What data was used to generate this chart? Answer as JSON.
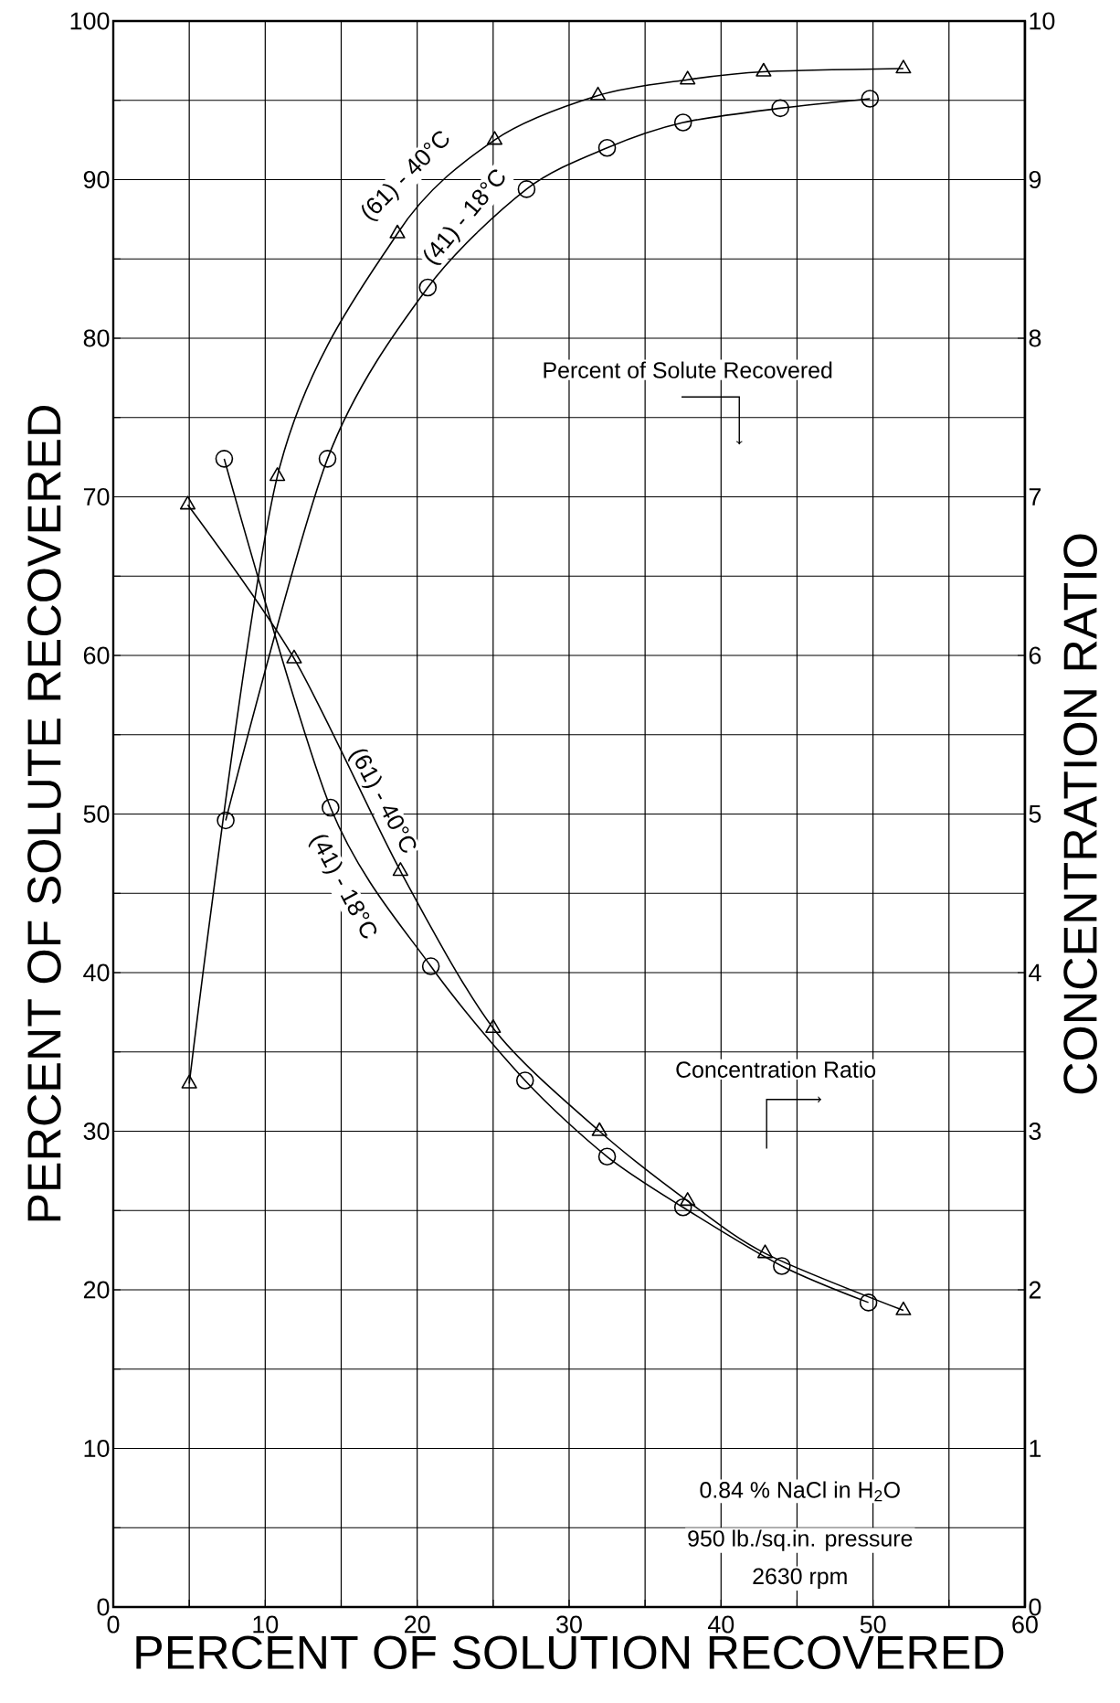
{
  "chart_data": {
    "type": "line",
    "xlabel": "PERCENT OF SOLUTION RECOVERED",
    "ylabel": "PERCENT OF SOLUTE RECOVERED",
    "y2label": "CONCENTRATION RATIO",
    "xlim": [
      0,
      60
    ],
    "xticks": [
      0,
      {
        "value": 5,
        "label": null
      },
      10,
      {
        "value": 15,
        "label": null
      },
      20,
      {
        "value": 25,
        "label": null
      },
      30,
      {
        "value": 35,
        "label": null
      },
      40,
      {
        "value": 45,
        "label": null
      },
      50,
      {
        "value": 55,
        "label": null
      },
      60
    ],
    "ylim": [
      0,
      100
    ],
    "yticks": [
      0,
      {
        "value": 5,
        "label": null
      },
      10,
      {
        "value": 15,
        "label": null
      },
      20,
      {
        "value": 25,
        "label": null
      },
      30,
      {
        "value": 35,
        "label": null
      },
      40,
      {
        "value": 45,
        "label": null
      },
      50,
      {
        "value": 55,
        "label": null
      },
      60,
      {
        "value": 65,
        "label": null
      },
      70,
      {
        "value": 75,
        "label": null
      },
      80,
      {
        "value": 85,
        "label": null
      },
      90,
      {
        "value": 95,
        "label": null
      },
      100
    ],
    "y2lim": [
      0,
      10
    ],
    "y2ticks": [
      0,
      1,
      2,
      3,
      4,
      5,
      6,
      7,
      8,
      9,
      10
    ],
    "grid": true,
    "legend": false,
    "series": [
      {
        "name": "(61) - 40°C",
        "color": "#000000",
        "marker": "triangle",
        "axis": "y",
        "x": [
          5,
          10.8,
          18.7,
          25.1,
          31.9,
          37.8,
          42.8,
          52.0
        ],
        "values": [
          33.0,
          71.3,
          86.6,
          92.5,
          95.3,
          96.3,
          96.8,
          97.0
        ]
      },
      {
        "name": "(41) - 18°C",
        "color": "#000000",
        "marker": "circle",
        "axis": "y",
        "x": [
          7.4,
          14.1,
          20.7,
          27.2,
          32.5,
          37.5,
          43.9,
          49.8
        ],
        "values": [
          49.6,
          72.4,
          83.2,
          89.4,
          92.0,
          93.6,
          94.5,
          95.1
        ]
      },
      {
        "name": "(61) - 40°C",
        "color": "#000000",
        "marker": "triangle",
        "axis": "y2",
        "x": [
          4.9,
          11.9,
          18.9,
          25.0,
          32.0,
          37.8,
          42.9,
          52.0
        ],
        "values": [
          6.95,
          5.98,
          4.64,
          3.65,
          3.0,
          2.56,
          2.23,
          1.87
        ]
      },
      {
        "name": "(41) - 18°C",
        "color": "#000000",
        "marker": "circle",
        "axis": "y2",
        "x": [
          7.3,
          14.3,
          20.9,
          27.1,
          32.5,
          37.5,
          44.0,
          49.7
        ],
        "values": [
          7.24,
          5.04,
          4.04,
          3.32,
          2.84,
          2.52,
          2.15,
          1.92
        ]
      }
    ],
    "annotations": [
      "Percent of Solute Recovered",
      "Concentration Ratio",
      "0.84 % NaCl in H$_{2}$O",
      "950 lb./sq.in. pressure",
      "2630 rpm"
    ]
  }
}
